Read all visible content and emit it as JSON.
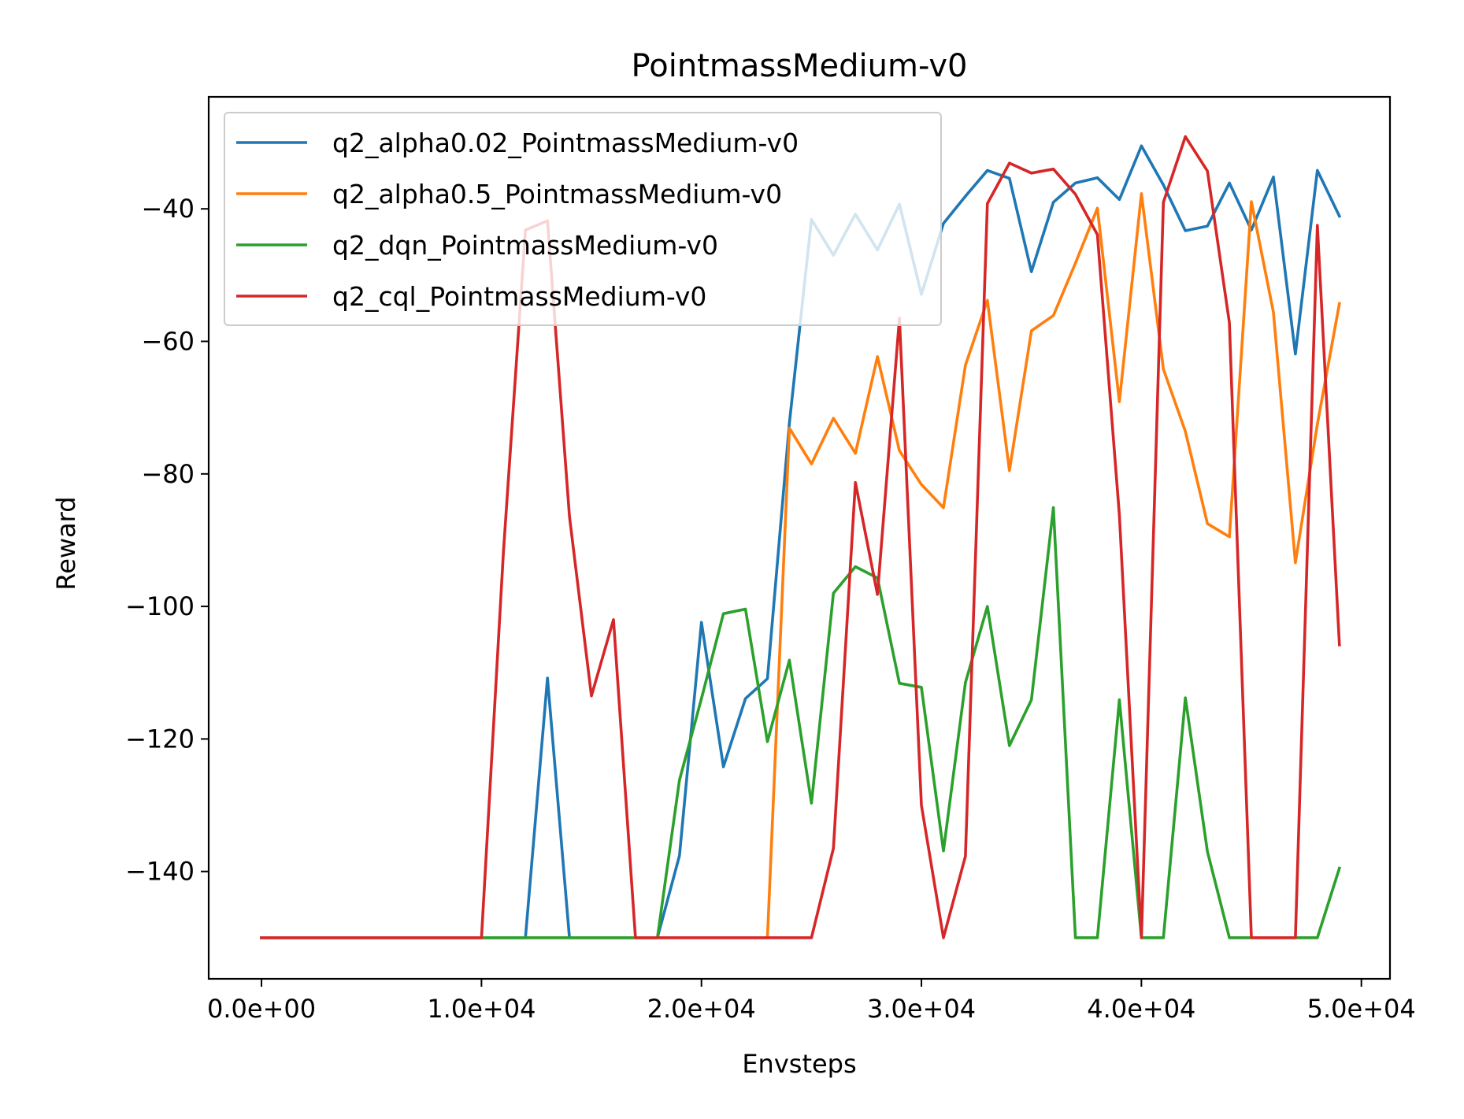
{
  "chart_data": {
    "type": "line",
    "title": "PointmassMedium-v0",
    "xlabel": "Envsteps",
    "ylabel": "Reward",
    "xlim": [
      -2400,
      51300
    ],
    "ylim": [
      -156.2,
      -23.1
    ],
    "xticks": [
      0,
      10000,
      20000,
      30000,
      40000,
      50000
    ],
    "xtick_labels": [
      "0.0e+00",
      "1.0e+04",
      "2.0e+04",
      "3.0e+04",
      "4.0e+04",
      "5.0e+04"
    ],
    "yticks": [
      -140,
      -120,
      -100,
      -80,
      -60,
      -40
    ],
    "ytick_labels": [
      "−140",
      "−120",
      "−100",
      "−80",
      "−60",
      "−40"
    ],
    "grid": false,
    "legend_position": "top-left",
    "x": [
      0,
      1000,
      2000,
      3000,
      4000,
      5000,
      6000,
      7000,
      8000,
      9000,
      10000,
      11000,
      12000,
      13000,
      14000,
      15000,
      16000,
      17000,
      18000,
      19000,
      20000,
      21000,
      22000,
      23000,
      24000,
      25000,
      26000,
      27000,
      28000,
      29000,
      30000,
      31000,
      32000,
      33000,
      34000,
      35000,
      36000,
      37000,
      38000,
      39000,
      40000,
      41000,
      42000,
      43000,
      44000,
      45000,
      46000,
      47000,
      48000,
      49000
    ],
    "series": [
      {
        "name": "q2_alpha0.02_PointmassMedium-v0",
        "color": "#1f77b4",
        "values": [
          -150,
          -150,
          -150,
          -150,
          -150,
          -150,
          -150,
          -150,
          -150,
          -150,
          -150,
          -150,
          -150,
          -110.8,
          -150,
          -150,
          -150,
          -150,
          -150,
          -137.6,
          -102.4,
          -124.2,
          -113.9,
          -110.9,
          -72.3,
          -41.6,
          -47,
          -40.8,
          -46.2,
          -39.3,
          -52.9,
          -42.2,
          -38.1,
          -34.2,
          -35.4,
          -49.5,
          -39,
          -36.1,
          -35.3,
          -38.6,
          -30.5,
          -36.4,
          -43.3,
          -42.6,
          -36.1,
          -43.2,
          -35.2,
          -61.9,
          -34.2,
          -41.1
        ]
      },
      {
        "name": "q2_alpha0.5_PointmassMedium-v0",
        "color": "#ff7f0e",
        "values": [
          -150,
          -150,
          -150,
          -150,
          -150,
          -150,
          -150,
          -150,
          -150,
          -150,
          -150,
          -150,
          -150,
          -150,
          -150,
          -150,
          -150,
          -150,
          -150,
          -150,
          -150,
          -150,
          -150,
          -150,
          -73.1,
          -78.5,
          -71.6,
          -76.9,
          -62.3,
          -76.5,
          -81.6,
          -85.1,
          -63.6,
          -53.8,
          -79.5,
          -58.4,
          -56.1,
          -48.2,
          -39.9,
          -69.1,
          -37.7,
          -64.2,
          -73.6,
          -87.5,
          -89.5,
          -38.9,
          -55.6,
          -93.4,
          -72.5,
          -54.3
        ]
      },
      {
        "name": "q2_dqn_PointmassMedium-v0",
        "color": "#2ca02c",
        "values": [
          -150,
          -150,
          -150,
          -150,
          -150,
          -150,
          -150,
          -150,
          -150,
          -150,
          -150,
          -150,
          -150,
          -150,
          -150,
          -150,
          -150,
          -150,
          -150,
          -126.2,
          -113.9,
          -101.1,
          -100.4,
          -120.4,
          -108.1,
          -129.7,
          -98,
          -94,
          -95.7,
          -111.6,
          -112.2,
          -136.9,
          -111.5,
          -100,
          -121,
          -114.1,
          -85.1,
          -150,
          -150,
          -114.1,
          -150,
          -150,
          -113.8,
          -137,
          -150,
          -150,
          -150,
          -150,
          -150,
          -139.5
        ]
      },
      {
        "name": "q2_cql_PointmassMedium-v0",
        "color": "#d62728",
        "values": [
          -150,
          -150,
          -150,
          -150,
          -150,
          -150,
          -150,
          -150,
          -150,
          -150,
          -150,
          -91.7,
          -43.2,
          -41.8,
          -86.4,
          -113.5,
          -102,
          -150,
          -150,
          -150,
          -150,
          -150,
          -150,
          -150,
          -150,
          -150,
          -136.5,
          -81.3,
          -98.2,
          -56.5,
          -130,
          -150,
          -137.7,
          -39.2,
          -33.1,
          -34.6,
          -34,
          -37.8,
          -43.9,
          -86.2,
          -150,
          -39,
          -29.1,
          -34.3,
          -57.2,
          -150,
          -150,
          -150,
          -42.5,
          -105.8
        ]
      }
    ]
  }
}
